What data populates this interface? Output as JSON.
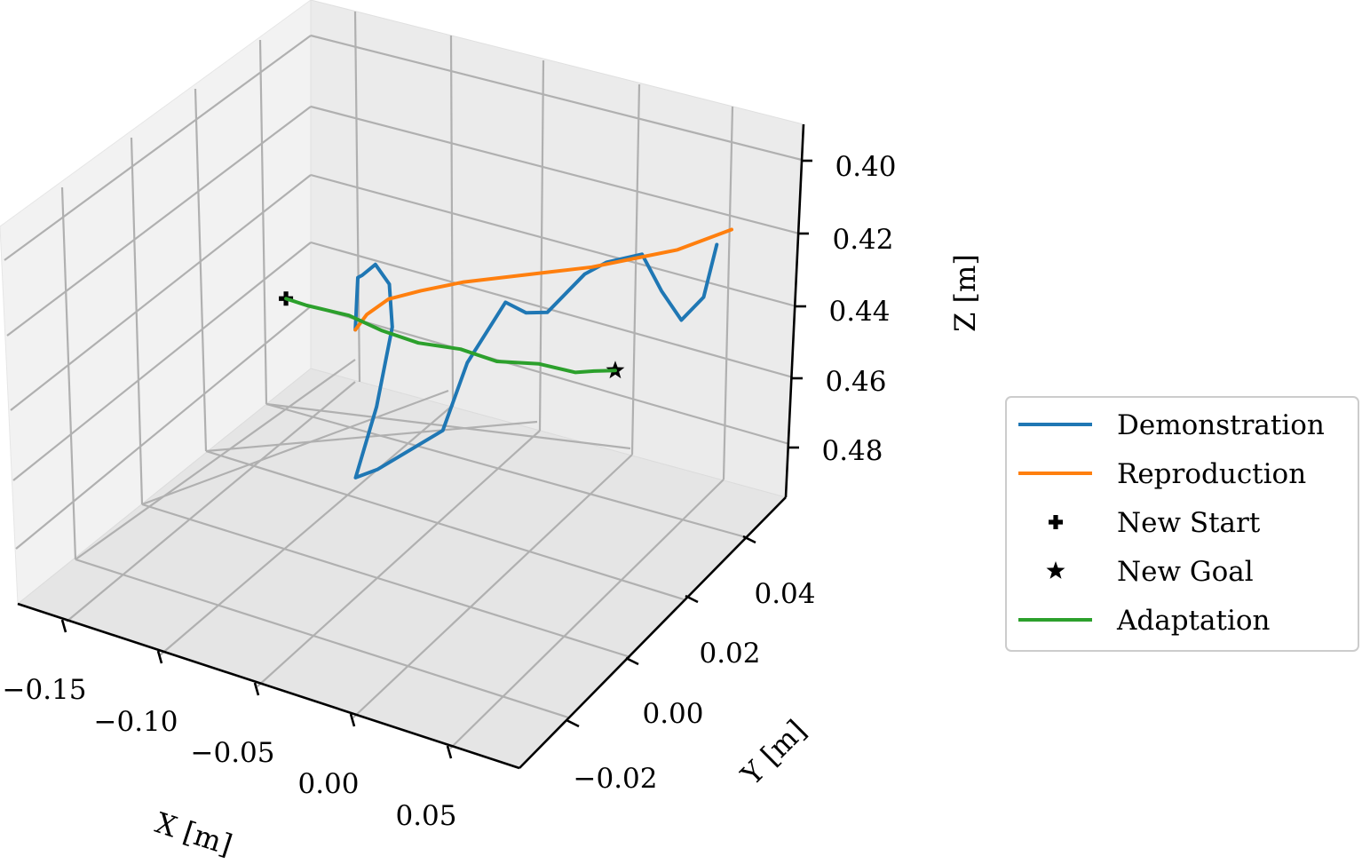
{
  "chart_data": {
    "type": "line",
    "projection": "3d",
    "title": "",
    "xlabel": "X [m]",
    "ylabel": "Y [m]",
    "zlabel": "Z [m]",
    "xlim": [
      -0.17,
      0.07
    ],
    "ylim": [
      -0.03,
      0.06
    ],
    "zlim": [
      0.39,
      0.49
    ],
    "z_axis_inverted": true,
    "grid": true,
    "legend_position": "right",
    "x_ticks": [
      "−0.15",
      "−0.10",
      "−0.05",
      "0.00",
      "0.05"
    ],
    "y_ticks": [
      "−0.02",
      "0.00",
      "0.02",
      "0.04"
    ],
    "z_ticks": [
      "0.40",
      "0.42",
      "0.44",
      "0.46",
      "0.48"
    ],
    "series": [
      {
        "name": "Demonstration",
        "kind": "line",
        "color": "#1f77b4",
        "points": [
          [
            -0.11,
            0.04,
            0.462
          ],
          [
            -0.11,
            0.04,
            0.455
          ],
          [
            -0.11,
            0.04,
            0.448
          ],
          [
            -0.108,
            0.04,
            0.447
          ],
          [
            -0.102,
            0.04,
            0.443
          ],
          [
            -0.095,
            0.04,
            0.447
          ],
          [
            -0.09,
            0.038,
            0.456
          ],
          [
            -0.085,
            0.03,
            0.47
          ],
          [
            -0.08,
            0.02,
            0.48
          ],
          [
            -0.07,
            0.02,
            0.476
          ],
          [
            -0.04,
            0.02,
            0.46
          ],
          [
            -0.03,
            0.02,
            0.44
          ],
          [
            -0.02,
            0.025,
            0.426
          ],
          [
            -0.01,
            0.025,
            0.427
          ],
          [
            0.0,
            0.025,
            0.425
          ],
          [
            0.01,
            0.03,
            0.417
          ],
          [
            0.02,
            0.03,
            0.412
          ],
          [
            0.03,
            0.035,
            0.412
          ],
          [
            0.04,
            0.035,
            0.42
          ],
          [
            0.05,
            0.035,
            0.426
          ],
          [
            0.06,
            0.035,
            0.418
          ],
          [
            0.065,
            0.035,
            0.403
          ]
        ]
      },
      {
        "name": "Reproduction",
        "kind": "line",
        "color": "#ff7f0e",
        "points": [
          [
            -0.11,
            0.04,
            0.462
          ],
          [
            -0.105,
            0.04,
            0.457
          ],
          [
            -0.095,
            0.04,
            0.451
          ],
          [
            -0.08,
            0.04,
            0.446
          ],
          [
            -0.06,
            0.04,
            0.44
          ],
          [
            -0.04,
            0.04,
            0.435
          ],
          [
            -0.02,
            0.04,
            0.43
          ],
          [
            0.0,
            0.04,
            0.425
          ],
          [
            0.02,
            0.04,
            0.419
          ],
          [
            0.04,
            0.04,
            0.413
          ],
          [
            0.055,
            0.04,
            0.407
          ],
          [
            0.065,
            0.04,
            0.403
          ]
        ]
      },
      {
        "name": "New Start",
        "kind": "marker",
        "marker": "plus",
        "color": "#000000",
        "points": [
          [
            -0.15,
            0.045,
            0.465
          ]
        ]
      },
      {
        "name": "New Goal",
        "kind": "marker",
        "marker": "star",
        "color": "#000000",
        "points": [
          [
            0.02,
            0.035,
            0.445
          ]
        ]
      },
      {
        "name": "Adaptation",
        "kind": "line",
        "color": "#2ca02c",
        "points": [
          [
            -0.15,
            0.045,
            0.465
          ],
          [
            -0.14,
            0.045,
            0.465
          ],
          [
            -0.12,
            0.045,
            0.464
          ],
          [
            -0.1,
            0.042,
            0.462
          ],
          [
            -0.08,
            0.04,
            0.46
          ],
          [
            -0.06,
            0.04,
            0.458
          ],
          [
            -0.04,
            0.038,
            0.456
          ],
          [
            -0.02,
            0.038,
            0.453
          ],
          [
            0.0,
            0.036,
            0.45
          ],
          [
            0.01,
            0.035,
            0.447
          ],
          [
            0.02,
            0.035,
            0.445
          ]
        ]
      }
    ]
  }
}
